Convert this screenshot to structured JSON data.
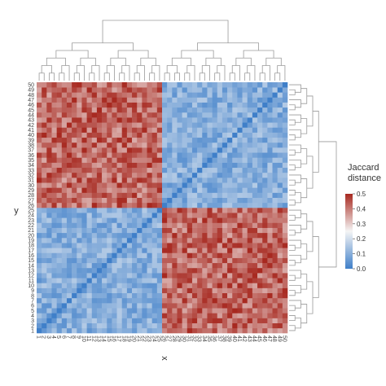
{
  "chart_data": {
    "type": "heatmap",
    "xlabel": "x",
    "ylabel": "y",
    "colorbar": {
      "title_lines": [
        "Jaccard",
        "distance"
      ],
      "ticks": [
        "0.5",
        "0.4",
        "0.3",
        "0.2",
        "0.1",
        "0.0"
      ],
      "tick_values": [
        0.5,
        0.4,
        0.3,
        0.2,
        0.1,
        0.0
      ],
      "range": [
        0,
        0.5
      ],
      "colors": {
        "low": "#3f7fc9",
        "mid": "#f5f5f5",
        "high": "#a7281f"
      }
    },
    "x_order": [
      1,
      2,
      3,
      4,
      5,
      6,
      7,
      8,
      9,
      10,
      11,
      12,
      13,
      14,
      15,
      16,
      17,
      18,
      19,
      20,
      21,
      22,
      23,
      24,
      25,
      26,
      27,
      28,
      29,
      30,
      31,
      32,
      33,
      34,
      35,
      36,
      37,
      38,
      39,
      40,
      41,
      42,
      43,
      44,
      45,
      46,
      47,
      48,
      49,
      50
    ],
    "y_order": [
      1,
      2,
      3,
      4,
      5,
      6,
      7,
      8,
      9,
      10,
      11,
      12,
      13,
      14,
      15,
      16,
      17,
      18,
      19,
      20,
      21,
      22,
      23,
      24,
      25,
      26,
      27,
      28,
      29,
      30,
      31,
      32,
      33,
      34,
      35,
      36,
      37,
      38,
      39,
      40,
      41,
      42,
      43,
      44,
      45,
      46,
      47,
      48,
      49,
      50
    ],
    "clusters": {
      "A": [
        1,
        25
      ],
      "B": [
        26,
        50
      ]
    },
    "values_description": "Within-cluster distances approximately 0.05-0.15, between-cluster distances approximately 0.35-0.5, diagonal 0.0",
    "values": {
      "within_cluster": 0.1,
      "between_cluster": 0.42,
      "diagonal": 0.0
    },
    "dendrograms": {
      "top": true,
      "right": true
    },
    "grid": false,
    "legend_position": "right"
  }
}
